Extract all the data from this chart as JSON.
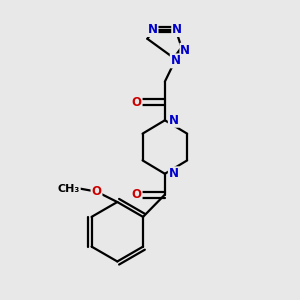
{
  "bg_color": "#e8e8e8",
  "bond_color": "#000000",
  "bond_width": 1.6,
  "atom_colors": {
    "N": "#0000cc",
    "O": "#cc0000",
    "C": "#000000"
  },
  "font_size_atom": 8.5,
  "fig_size": [
    3.0,
    3.0
  ],
  "dpi": 100,
  "xlim": [
    0,
    10
  ],
  "ylim": [
    0,
    10
  ]
}
